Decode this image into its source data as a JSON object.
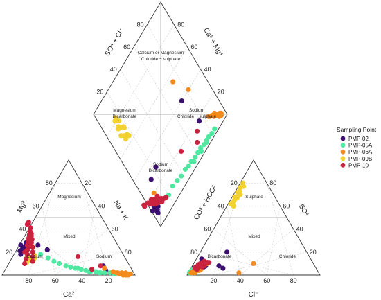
{
  "chart_data": {
    "type": "scatter",
    "subtype": "piper-trilinear",
    "grid": true,
    "legend_position": "right",
    "legend": {
      "title": "Sampling Point",
      "entries": [
        {
          "name": "PMP-02",
          "color": "#3b0f70"
        },
        {
          "name": "PMP-05A",
          "color": "#4ee8a0"
        },
        {
          "name": "PMP-06A",
          "color": "#f28a1e"
        },
        {
          "name": "PMP-09B",
          "color": "#f2d22e"
        },
        {
          "name": "PMP-10",
          "color": "#c9233f"
        }
      ]
    },
    "cation_triangle": {
      "axis_labels": {
        "left": "Mg²",
        "right": "Na + K",
        "bottom": "Ca²"
      },
      "ticks": [
        "20",
        "40",
        "60",
        "80"
      ],
      "regions": [
        "Magnesium",
        "Mixed",
        "Calcium",
        "Sodium"
      ]
    },
    "anion_triangle": {
      "axis_labels": {
        "left": "CO³ + HCO³",
        "right": "SO⁴",
        "bottom": "Cl⁻"
      },
      "ticks": [
        "20",
        "40",
        "60",
        "80"
      ],
      "regions": [
        "Sulphate",
        "Mixed",
        "Bicarbonate",
        "Chloride"
      ]
    },
    "diamond": {
      "axis_labels": {
        "upper_left": "SO⁴ + Cl⁻",
        "upper_right": "Ca³ + Mg³"
      },
      "ticks": [
        "20",
        "40",
        "60",
        "80"
      ],
      "regions": [
        [
          "Calcium or Magnesium",
          "Chloride − sulphate"
        ],
        [
          "Magnesium",
          "Bicarbonate"
        ],
        [
          "Sodium",
          "Chloride − sulphate"
        ],
        [
          "Sodium",
          "Bicarbonate"
        ]
      ]
    },
    "series": [
      {
        "name": "PMP-02",
        "color": "#3b0f70",
        "points": [
          {
            "ca": 72,
            "mg": 24,
            "hco3": 92,
            "cl": 2
          },
          {
            "ca": 74,
            "mg": 22,
            "hco3": 91,
            "cl": 3
          },
          {
            "ca": 70,
            "mg": 25,
            "hco3": 90,
            "cl": 4
          },
          {
            "ca": 75,
            "mg": 20,
            "hco3": 88,
            "cl": 5
          },
          {
            "ca": 68,
            "mg": 28,
            "hco3": 86,
            "cl": 6
          },
          {
            "ca": 77,
            "mg": 18,
            "hco3": 85,
            "cl": 7
          },
          {
            "ca": 71,
            "mg": 22,
            "hco3": 89,
            "cl": 6
          },
          {
            "ca": 73,
            "mg": 26,
            "hco3": 87,
            "cl": 4
          },
          {
            "ca": 69,
            "mg": 23,
            "hco3": 84,
            "cl": 9
          },
          {
            "ca": 76,
            "mg": 21,
            "hco3": 82,
            "cl": 10
          },
          {
            "ca": 55,
            "mg": 22,
            "hco3": 70,
            "cl": 24
          },
          {
            "ca": 60,
            "mg": 26,
            "hco3": 72,
            "cl": 20
          },
          {
            "ca": 20,
            "mg": 8,
            "hco3": 60,
            "cl": 20
          },
          {
            "ca": 20,
            "mg": 4,
            "hco3": 82,
            "cl": 4
          }
        ]
      },
      {
        "name": "PMP-05A",
        "color": "#4ee8a0",
        "points": [
          {
            "ca": 62,
            "mg": 18,
            "hco3": 92,
            "cl": 3
          },
          {
            "ca": 58,
            "mg": 15,
            "hco3": 91,
            "cl": 4
          },
          {
            "ca": 55,
            "mg": 12,
            "hco3": 92,
            "cl": 3
          },
          {
            "ca": 52,
            "mg": 10,
            "hco3": 93,
            "cl": 3
          },
          {
            "ca": 48,
            "mg": 8,
            "hco3": 93,
            "cl": 2
          },
          {
            "ca": 45,
            "mg": 7,
            "hco3": 94,
            "cl": 2
          },
          {
            "ca": 42,
            "mg": 6,
            "hco3": 94,
            "cl": 2
          },
          {
            "ca": 38,
            "mg": 5,
            "hco3": 95,
            "cl": 2
          },
          {
            "ca": 35,
            "mg": 4,
            "hco3": 95,
            "cl": 2
          },
          {
            "ca": 32,
            "mg": 3,
            "hco3": 95,
            "cl": 2
          },
          {
            "ca": 28,
            "mg": 3,
            "hco3": 96,
            "cl": 1
          },
          {
            "ca": 25,
            "mg": 2,
            "hco3": 96,
            "cl": 1
          },
          {
            "ca": 22,
            "mg": 2,
            "hco3": 96,
            "cl": 1
          },
          {
            "ca": 18,
            "mg": 2,
            "hco3": 97,
            "cl": 1
          },
          {
            "ca": 15,
            "mg": 1,
            "hco3": 97,
            "cl": 1
          },
          {
            "ca": 40,
            "mg": 6,
            "hco3": 96,
            "cl": 2
          },
          {
            "ca": 33,
            "mg": 3,
            "hco3": 97,
            "cl": 1
          },
          {
            "ca": 26,
            "mg": 2,
            "hco3": 97,
            "cl": 1
          }
        ]
      },
      {
        "name": "PMP-06A",
        "color": "#f28a1e",
        "points": [
          {
            "ca": 12,
            "mg": 2,
            "hco3": 88,
            "cl": 6
          },
          {
            "ca": 10,
            "mg": 1,
            "hco3": 90,
            "cl": 5
          },
          {
            "ca": 8,
            "mg": 1,
            "hco3": 92,
            "cl": 4
          },
          {
            "ca": 6,
            "mg": 1,
            "hco3": 93,
            "cl": 4
          },
          {
            "ca": 5,
            "mg": 0,
            "hco3": 94,
            "cl": 3
          },
          {
            "ca": 9,
            "mg": 2,
            "hco3": 91,
            "cl": 5
          },
          {
            "ca": 7,
            "mg": 0,
            "hco3": 95,
            "cl": 3
          },
          {
            "ca": 11,
            "mg": 1,
            "hco3": 89,
            "cl": 7
          },
          {
            "ca": 4,
            "mg": 1,
            "hco3": 96,
            "cl": 2
          },
          {
            "ca": 13,
            "mg": 2,
            "hco3": 87,
            "cl": 8
          },
          {
            "ca": 6,
            "mg": 2,
            "hco3": 93,
            "cl": 5
          },
          {
            "ca": 9,
            "mg": 0,
            "hco3": 90,
            "cl": 6
          },
          {
            "ca": 3,
            "mg": 1,
            "hco3": 95,
            "cl": 3
          },
          {
            "ca": 65,
            "mg": 25,
            "hco3": 80,
            "cl": 10
          },
          {
            "ca": 15,
            "mg": 3,
            "hco3": 60,
            "cl": 38
          },
          {
            "ca": 20,
            "mg": 6,
            "hco3": 45,
            "cl": 45
          }
        ]
      },
      {
        "name": "PMP-09B",
        "color": "#f2d22e",
        "points": [
          {
            "ca": 70,
            "mg": 15,
            "hco3": 18,
            "cl": 2
          },
          {
            "ca": 72,
            "mg": 14,
            "hco3": 20,
            "cl": 3
          },
          {
            "ca": 68,
            "mg": 16,
            "hco3": 22,
            "cl": 2
          },
          {
            "ca": 74,
            "mg": 13,
            "hco3": 24,
            "cl": 3
          },
          {
            "ca": 71,
            "mg": 15,
            "hco3": 26,
            "cl": 2
          },
          {
            "ca": 69,
            "mg": 14,
            "hco3": 28,
            "cl": 4
          },
          {
            "ca": 73,
            "mg": 16,
            "hco3": 30,
            "cl": 2
          },
          {
            "ca": 75,
            "mg": 12,
            "hco3": 32,
            "cl": 3
          },
          {
            "ca": 67,
            "mg": 17,
            "hco3": 34,
            "cl": 3
          },
          {
            "ca": 70,
            "mg": 13,
            "hco3": 36,
            "cl": 2
          },
          {
            "ca": 72,
            "mg": 15,
            "hco3": 19,
            "cl": 4
          },
          {
            "ca": 74,
            "mg": 14,
            "hco3": 25,
            "cl": 5
          },
          {
            "ca": 68,
            "mg": 15,
            "hco3": 29,
            "cl": 4
          },
          {
            "ca": 76,
            "mg": 11,
            "hco3": 35,
            "cl": 5
          }
        ]
      },
      {
        "name": "PMP-10",
        "color": "#c9233f",
        "points": [
          {
            "ca": 78,
            "mg": 10,
            "hco3": 90,
            "cl": 3
          },
          {
            "ca": 75,
            "mg": 14,
            "hco3": 89,
            "cl": 4
          },
          {
            "ca": 72,
            "mg": 18,
            "hco3": 88,
            "cl": 5
          },
          {
            "ca": 70,
            "mg": 22,
            "hco3": 87,
            "cl": 4
          },
          {
            "ca": 68,
            "mg": 26,
            "hco3": 86,
            "cl": 6
          },
          {
            "ca": 66,
            "mg": 29,
            "hco3": 85,
            "cl": 5
          },
          {
            "ca": 64,
            "mg": 32,
            "hco3": 84,
            "cl": 7
          },
          {
            "ca": 62,
            "mg": 35,
            "hco3": 83,
            "cl": 6
          },
          {
            "ca": 60,
            "mg": 38,
            "hco3": 82,
            "cl": 8
          },
          {
            "ca": 58,
            "mg": 41,
            "hco3": 80,
            "cl": 9
          },
          {
            "ca": 63,
            "mg": 30,
            "hco3": 86,
            "cl": 5
          },
          {
            "ca": 65,
            "mg": 24,
            "hco3": 84,
            "cl": 6
          },
          {
            "ca": 67,
            "mg": 20,
            "hco3": 88,
            "cl": 5
          },
          {
            "ca": 61,
            "mg": 34,
            "hco3": 81,
            "cl": 7
          },
          {
            "ca": 59,
            "mg": 44,
            "hco3": 79,
            "cl": 10
          },
          {
            "ca": 69,
            "mg": 16,
            "hco3": 90,
            "cl": 4
          },
          {
            "ca": 64,
            "mg": 28,
            "hco3": 87,
            "cl": 5
          },
          {
            "ca": 57,
            "mg": 46,
            "hco3": 78,
            "cl": 11
          },
          {
            "ca": 71,
            "mg": 12,
            "hco3": 91,
            "cl": 3
          },
          {
            "ca": 66,
            "mg": 25,
            "hco3": 85,
            "cl": 8
          },
          {
            "ca": 62,
            "mg": 31,
            "hco3": 83,
            "cl": 9
          },
          {
            "ca": 60,
            "mg": 36,
            "hco3": 84,
            "cl": 7
          },
          {
            "ca": 73,
            "mg": 20,
            "hco3": 86,
            "cl": 5
          },
          {
            "ca": 35,
            "mg": 16,
            "hco3": 82,
            "cl": 8
          },
          {
            "ca": 30,
            "mg": 5,
            "hco3": 90,
            "cl": 5
          },
          {
            "ca": 22,
            "mg": 8,
            "hco3": 85,
            "cl": 6
          }
        ]
      }
    ]
  }
}
